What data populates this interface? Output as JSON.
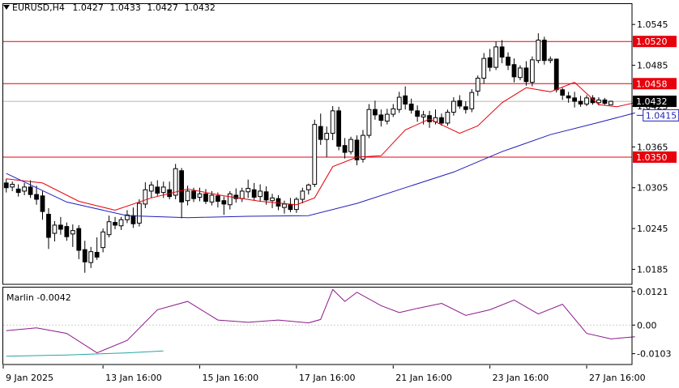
{
  "symbol_header": {
    "symbol": "EURUSD,H4",
    "open": "1.0427",
    "high": "1.0433",
    "low": "1.0427",
    "close": "1.0432"
  },
  "colors": {
    "bull_body": "#ffffff",
    "bear_body": "#000000",
    "wick": "#000000",
    "ma_fast": "#e8000b",
    "ma_slow": "#1f1fb8",
    "level_line": "#e8000b",
    "level_label_bg": "#e8000b",
    "current_price_bg": "#000000",
    "callout_border": "#1f1fb8",
    "oscillator": "#8b1a8b",
    "oscillator_secondary": "#2aa3a3",
    "grid": "#dcdcdc",
    "axis": "#000000"
  },
  "chart_data": [
    {
      "type": "candlestick",
      "title": "EURUSD,H4",
      "y_axis_ticks": [
        "1.0545",
        "1.0485",
        "1.0425",
        "1.0365",
        "1.0305",
        "1.0245",
        "1.0185"
      ],
      "ylim": [
        1.0163,
        1.0575
      ],
      "x_axis_ticks": [
        "9 Jan 2025",
        "13 Jan 16:00",
        "15 Jan 16:00",
        "17 Jan 16:00",
        "21 Jan 16:00",
        "23 Jan 16:00",
        "27 Jan 16:00"
      ],
      "horizontal_levels": [
        {
          "value": 1.052,
          "label": "1.0520"
        },
        {
          "value": 1.0458,
          "label": "1.0458"
        },
        {
          "value": 1.035,
          "label": "1.0350"
        }
      ],
      "current_price": {
        "value": 1.0432,
        "label": "1.0432"
      },
      "callout": {
        "value": 1.0415,
        "label": "1.0415"
      },
      "candles": [
        [
          1.0312,
          1.0318,
          1.0298,
          1.0305
        ],
        [
          1.0306,
          1.0314,
          1.03,
          1.031
        ],
        [
          1.0303,
          1.031,
          1.0292,
          1.0298
        ],
        [
          1.03,
          1.0312,
          1.0294,
          1.0306
        ],
        [
          1.0306,
          1.0316,
          1.029,
          1.0295
        ],
        [
          1.0295,
          1.0308,
          1.028,
          1.0288
        ],
        [
          1.0293,
          1.03,
          1.0258,
          1.027
        ],
        [
          1.0266,
          1.0275,
          1.0215,
          1.0232
        ],
        [
          1.0238,
          1.0256,
          1.0226,
          1.025
        ],
        [
          1.025,
          1.0262,
          1.0236,
          1.0244
        ],
        [
          1.0248,
          1.0254,
          1.0227,
          1.0233
        ],
        [
          1.0237,
          1.0251,
          1.0218,
          1.0242
        ],
        [
          1.0245,
          1.025,
          1.02,
          1.0213
        ],
        [
          1.0214,
          1.0227,
          1.018,
          1.0196
        ],
        [
          1.0195,
          1.0218,
          1.0187,
          1.0211
        ],
        [
          1.021,
          1.0232,
          1.0199,
          1.0203
        ],
        [
          1.0217,
          1.0245,
          1.021,
          1.024
        ],
        [
          1.0236,
          1.0264,
          1.0232,
          1.0255
        ],
        [
          1.0254,
          1.0262,
          1.0244,
          1.025
        ],
        [
          1.0249,
          1.0262,
          1.0243,
          1.0258
        ],
        [
          1.0258,
          1.0272,
          1.0253,
          1.0265
        ],
        [
          1.0264,
          1.0276,
          1.0246,
          1.0252
        ],
        [
          1.0253,
          1.0288,
          1.0248,
          1.0282
        ],
        [
          1.0281,
          1.0313,
          1.0275,
          1.0302
        ],
        [
          1.03,
          1.0314,
          1.029,
          1.0309
        ],
        [
          1.0306,
          1.0316,
          1.0293,
          1.0297
        ],
        [
          1.0298,
          1.0314,
          1.029,
          1.0306
        ],
        [
          1.0302,
          1.0314,
          1.0288,
          1.0292
        ],
        [
          1.0294,
          1.034,
          1.0288,
          1.0333
        ],
        [
          1.033,
          1.0334,
          1.026,
          1.0284
        ],
        [
          1.0286,
          1.0308,
          1.0279,
          1.03
        ],
        [
          1.03,
          1.0305,
          1.0284,
          1.0289
        ],
        [
          1.0291,
          1.0305,
          1.0285,
          1.0296
        ],
        [
          1.0296,
          1.0303,
          1.0281,
          1.0285
        ],
        [
          1.0284,
          1.03,
          1.0279,
          1.0294
        ],
        [
          1.0293,
          1.0298,
          1.0276,
          1.0285
        ],
        [
          1.0286,
          1.0292,
          1.0265,
          1.0281
        ],
        [
          1.028,
          1.03,
          1.0273,
          1.0296
        ],
        [
          1.0294,
          1.0304,
          1.0283,
          1.0289
        ],
        [
          1.0289,
          1.0305,
          1.0284,
          1.03
        ],
        [
          1.0299,
          1.0317,
          1.029,
          1.0304
        ],
        [
          1.0302,
          1.0312,
          1.0286,
          1.0291
        ],
        [
          1.0292,
          1.031,
          1.0285,
          1.03
        ],
        [
          1.0299,
          1.0307,
          1.028,
          1.0287
        ],
        [
          1.0286,
          1.0296,
          1.0275,
          1.029
        ],
        [
          1.0289,
          1.0294,
          1.0272,
          1.0278
        ],
        [
          1.0276,
          1.0286,
          1.0267,
          1.0281
        ],
        [
          1.028,
          1.029,
          1.0269,
          1.0273
        ],
        [
          1.0273,
          1.0291,
          1.0268,
          1.0288
        ],
        [
          1.0288,
          1.0305,
          1.0282,
          1.03
        ],
        [
          1.0302,
          1.0311,
          1.0295,
          1.0309
        ],
        [
          1.031,
          1.0405,
          1.0306,
          1.0398
        ],
        [
          1.0395,
          1.0414,
          1.0368,
          1.0376
        ],
        [
          1.0376,
          1.0395,
          1.035,
          1.0385
        ],
        [
          1.0385,
          1.0425,
          1.0375,
          1.0418
        ],
        [
          1.0418,
          1.0424,
          1.036,
          1.0366
        ],
        [
          1.0367,
          1.0378,
          1.0348,
          1.0357
        ],
        [
          1.0358,
          1.038,
          1.0354,
          1.0376
        ],
        [
          1.0375,
          1.0382,
          1.0338,
          1.0346
        ],
        [
          1.0347,
          1.039,
          1.0342,
          1.0382
        ],
        [
          1.0382,
          1.0428,
          1.0378,
          1.042
        ],
        [
          1.042,
          1.0433,
          1.0405,
          1.0412
        ],
        [
          1.0412,
          1.042,
          1.0395,
          1.0404
        ],
        [
          1.0403,
          1.0421,
          1.0398,
          1.0413
        ],
        [
          1.0413,
          1.0428,
          1.0409,
          1.0421
        ],
        [
          1.042,
          1.0446,
          1.0415,
          1.0438
        ],
        [
          1.044,
          1.0454,
          1.042,
          1.0428
        ],
        [
          1.0428,
          1.0436,
          1.0414,
          1.0419
        ],
        [
          1.0418,
          1.0426,
          1.0402,
          1.041
        ],
        [
          1.0409,
          1.0418,
          1.0398,
          1.0412
        ],
        [
          1.0411,
          1.0418,
          1.0393,
          1.0402
        ],
        [
          1.0402,
          1.042,
          1.0398,
          1.0408
        ],
        [
          1.0408,
          1.0414,
          1.0396,
          1.04
        ],
        [
          1.04,
          1.042,
          1.0396,
          1.0416
        ],
        [
          1.0416,
          1.0438,
          1.0411,
          1.0432
        ],
        [
          1.0433,
          1.0441,
          1.0421,
          1.0425
        ],
        [
          1.0424,
          1.0432,
          1.0414,
          1.042
        ],
        [
          1.0421,
          1.045,
          1.0416,
          1.0445
        ],
        [
          1.0447,
          1.047,
          1.044,
          1.0466
        ],
        [
          1.0466,
          1.0503,
          1.0458,
          1.0495
        ],
        [
          1.0496,
          1.0509,
          1.0476,
          1.0482
        ],
        [
          1.0482,
          1.052,
          1.0478,
          1.0512
        ],
        [
          1.0512,
          1.0522,
          1.0488,
          1.0497
        ],
        [
          1.0497,
          1.0504,
          1.0478,
          1.0485
        ],
        [
          1.0486,
          1.0495,
          1.046,
          1.0468
        ],
        [
          1.0467,
          1.0485,
          1.0463,
          1.0481
        ],
        [
          1.0481,
          1.0491,
          1.0455,
          1.0461
        ],
        [
          1.046,
          1.0498,
          1.0454,
          1.0493
        ],
        [
          1.0492,
          1.0532,
          1.0488,
          1.0522
        ],
        [
          1.0522,
          1.0527,
          1.0486,
          1.0492
        ],
        [
          1.0492,
          1.0498,
          1.0488,
          1.0494
        ],
        [
          1.0494,
          1.0495,
          1.0445,
          1.0449
        ],
        [
          1.0449,
          1.0452,
          1.0434,
          1.0441
        ],
        [
          1.044,
          1.0446,
          1.043,
          1.0437
        ],
        [
          1.0437,
          1.0446,
          1.0423,
          1.0432
        ],
        [
          1.0432,
          1.044,
          1.0424,
          1.0428
        ],
        [
          1.0428,
          1.0441,
          1.0425,
          1.0437
        ],
        [
          1.0437,
          1.0441,
          1.0427,
          1.043
        ],
        [
          1.043,
          1.0438,
          1.0426,
          1.0434
        ],
        [
          1.0434,
          1.0437,
          1.0427,
          1.0429
        ],
        [
          1.0427,
          1.0433,
          1.0427,
          1.0432
        ]
      ],
      "series": [
        {
          "values": [
            [
              0,
              1.0318
            ],
            [
              6,
              1.0312
            ],
            [
              12,
              1.0285
            ],
            [
              18,
              1.0272
            ],
            [
              24,
              1.029
            ],
            [
              30,
              1.0303
            ],
            [
              36,
              1.0293
            ],
            [
              42,
              1.0285
            ],
            [
              48,
              1.028
            ],
            [
              51,
              1.029
            ],
            [
              54,
              1.0336
            ],
            [
              58,
              1.035
            ],
            [
              62,
              1.0352
            ],
            [
              66,
              1.039
            ],
            [
              70,
              1.0406
            ],
            [
              75,
              1.0385
            ],
            [
              78,
              1.0396
            ],
            [
              82,
              1.043
            ],
            [
              86,
              1.0452
            ],
            [
              90,
              1.0446
            ],
            [
              94,
              1.046
            ],
            [
              98,
              1.0427
            ],
            [
              101,
              1.0424
            ],
            [
              104,
              1.043
            ]
          ]
        },
        {
          "values": [
            [
              0,
              1.0326
            ],
            [
              10,
              1.0284
            ],
            [
              20,
              1.0264
            ],
            [
              30,
              1.0261
            ],
            [
              40,
              1.0263
            ],
            [
              50,
              1.0264
            ],
            [
              58,
              1.0282
            ],
            [
              66,
              1.0305
            ],
            [
              74,
              1.0328
            ],
            [
              82,
              1.0358
            ],
            [
              90,
              1.0383
            ],
            [
              98,
              1.0401
            ],
            [
              104,
              1.0415
            ]
          ]
        }
      ]
    },
    {
      "type": "line",
      "title": "Marlin -0.0042",
      "y_axis_ticks": [
        "0.0121",
        "0.00",
        "-0.0103"
      ],
      "ylim": [
        -0.0142,
        0.0135
      ],
      "series": [
        {
          "values": [
            [
              0,
              -0.002
            ],
            [
              5,
              -0.001
            ],
            [
              10,
              -0.003
            ],
            [
              15,
              -0.01
            ],
            [
              20,
              -0.0055
            ],
            [
              25,
              0.0055
            ],
            [
              30,
              0.0085
            ],
            [
              35,
              0.0018
            ],
            [
              40,
              0.001
            ],
            [
              45,
              0.0018
            ],
            [
              50,
              0.0008
            ],
            [
              52,
              0.002
            ],
            [
              54,
              0.0128
            ],
            [
              56,
              0.0085
            ],
            [
              58,
              0.0118
            ],
            [
              62,
              0.007
            ],
            [
              65,
              0.0045
            ],
            [
              68,
              0.006
            ],
            [
              72,
              0.0078
            ],
            [
              76,
              0.0035
            ],
            [
              80,
              0.0055
            ],
            [
              84,
              0.009
            ],
            [
              88,
              0.004
            ],
            [
              92,
              0.0075
            ],
            [
              96,
              -0.003
            ],
            [
              100,
              -0.005
            ],
            [
              104,
              -0.0042
            ]
          ]
        },
        {
          "values": [
            [
              0,
              -0.0112
            ],
            [
              10,
              -0.0108
            ],
            [
              20,
              -0.01
            ],
            [
              26,
              -0.0093
            ]
          ]
        }
      ]
    }
  ]
}
